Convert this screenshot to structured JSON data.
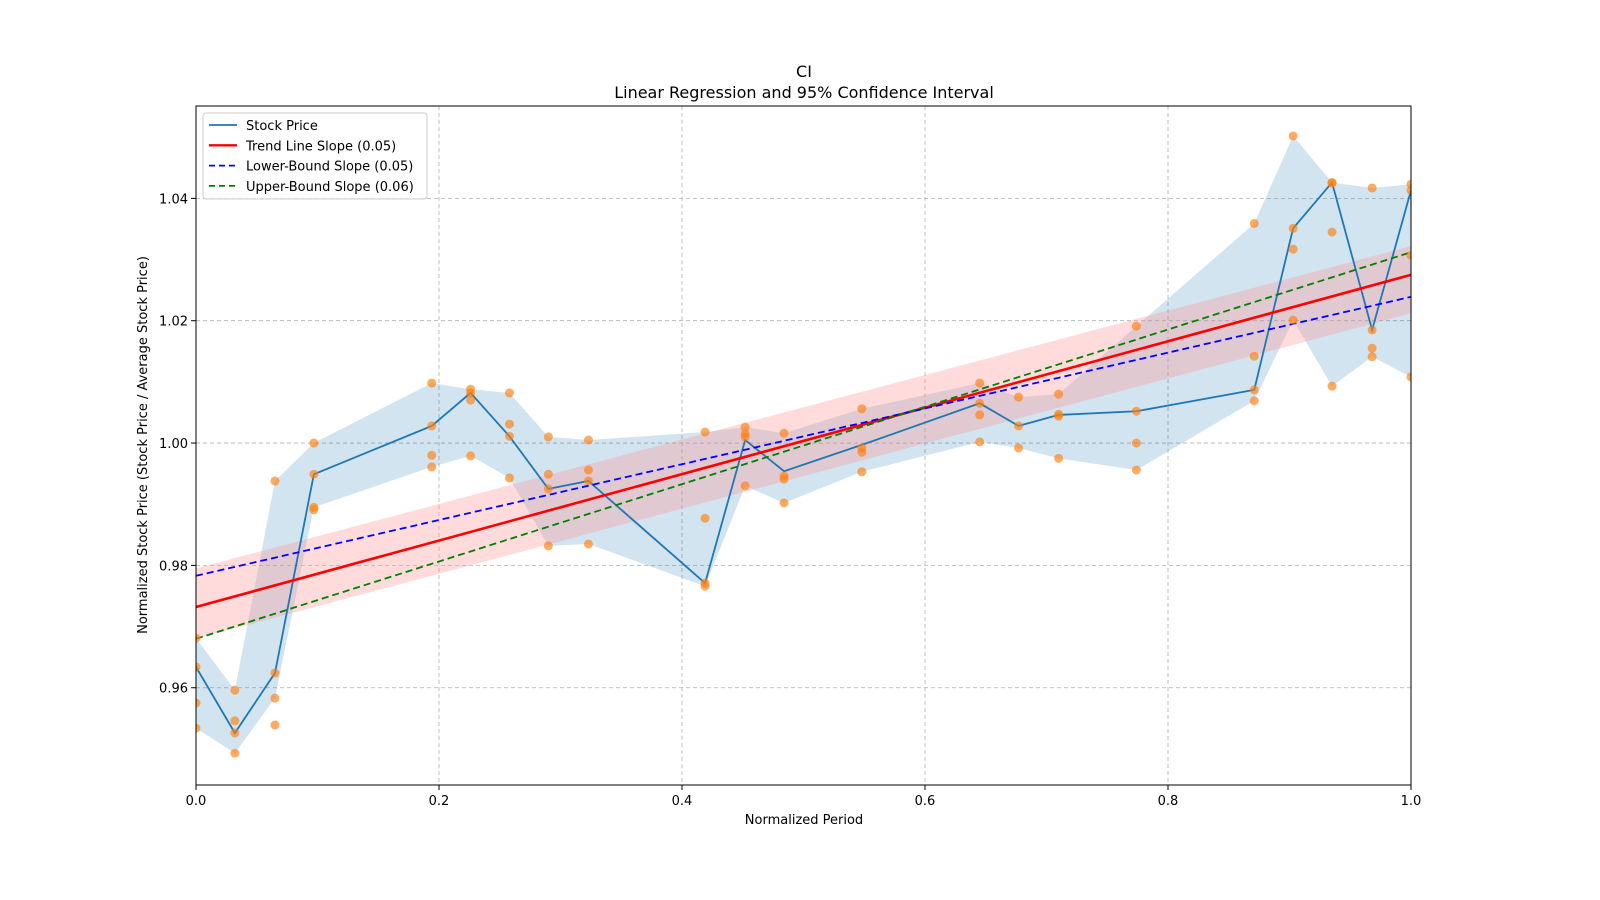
{
  "chart_data": {
    "type": "line",
    "title": "CI",
    "subtitle": "Linear Regression and 95% Confidence Interval",
    "xlabel": "Normalized Period",
    "ylabel": "Normalized Stock Price (Stock Price / Average Stock Price)",
    "xlim": [
      0.0,
      1.0
    ],
    "ylim": [
      0.9441,
      1.0551
    ],
    "grid": true,
    "legend_position": "top-left",
    "x_ticks": [
      "0.0",
      "0.2",
      "0.4",
      "0.6",
      "0.8",
      "1.0"
    ],
    "x_tick_values": [
      0.0,
      0.2,
      0.4,
      0.6,
      0.8,
      1.0
    ],
    "y_ticks": [
      "0.96",
      "0.98",
      "1.00",
      "1.02",
      "1.04"
    ],
    "y_tick_values": [
      0.96,
      0.98,
      1.0,
      1.02,
      1.04
    ],
    "colors": {
      "stock": "#1f77b4",
      "stock_band": "#1f77b4",
      "scatter": "#ff7f0e",
      "trend": "#ff0000",
      "trend_band": "#ff9999",
      "lower": "#0000ff",
      "upper": "#008000"
    },
    "legend": [
      {
        "label": "Stock Price",
        "style": "solid",
        "color": "#1f77b4"
      },
      {
        "label": "Trend Line Slope (0.05)",
        "style": "solid",
        "color": "#ff0000"
      },
      {
        "label": "Lower-Bound Slope (0.05)",
        "style": "dashed",
        "color": "#0000ff"
      },
      {
        "label": "Upper-Bound Slope (0.06)",
        "style": "dashed",
        "color": "#008000"
      }
    ],
    "groups": [
      {
        "x": 0.0,
        "points": [
          0.9634,
          0.9575,
          0.9534,
          0.9681
        ],
        "mean": 0.9634
      },
      {
        "x": 0.032,
        "points": [
          0.9596,
          0.9546,
          0.9526,
          0.9493
        ],
        "mean": 0.9526
      },
      {
        "x": 0.065,
        "points": [
          0.9938,
          0.9624,
          0.9583,
          0.9539
        ],
        "mean": 0.9624
      },
      {
        "x": 0.097,
        "points": [
          1.0,
          0.9949,
          0.9895,
          0.9891
        ],
        "mean": 0.9949
      },
      {
        "x": 0.194,
        "points": [
          1.0098,
          1.0028,
          0.998,
          0.9961
        ],
        "mean": 1.0028
      },
      {
        "x": 0.226,
        "points": [
          1.0088,
          1.0082,
          1.007,
          0.9979
        ],
        "mean": 1.0082
      },
      {
        "x": 0.258,
        "points": [
          1.0082,
          1.0031,
          1.0011,
          0.9943
        ],
        "mean": 1.0011
      },
      {
        "x": 0.29,
        "points": [
          1.001,
          0.9949,
          0.9925,
          0.9832
        ],
        "mean": 0.9925
      },
      {
        "x": 0.323,
        "points": [
          1.0005,
          0.9956,
          0.9938,
          0.9835
        ],
        "mean": 0.9938
      },
      {
        "x": 0.419,
        "points": [
          1.0018,
          0.9877,
          0.9771,
          0.9766
        ],
        "mean": 0.9771
      },
      {
        "x": 0.452,
        "points": [
          1.0026,
          1.0015,
          1.001,
          0.993
        ],
        "mean": 1.0005
      },
      {
        "x": 0.484,
        "points": [
          1.0016,
          0.9946,
          0.9941,
          0.9902
        ],
        "mean": 0.9954
      },
      {
        "x": 0.548,
        "points": [
          1.0056,
          0.9992,
          0.9985,
          0.9953
        ],
        "mean": 0.9997
      },
      {
        "x": 0.645,
        "points": [
          1.0098,
          1.0065,
          1.0046,
          1.0002
        ],
        "mean": 1.0065
      },
      {
        "x": 0.677,
        "points": [
          1.0075,
          1.0028,
          0.9992
        ],
        "mean": 1.0028
      },
      {
        "x": 0.71,
        "points": [
          1.008,
          1.0047,
          1.0044,
          0.9975
        ],
        "mean": 1.0046
      },
      {
        "x": 0.774,
        "points": [
          1.0191,
          1.0052,
          1.0,
          0.9956
        ],
        "mean": 1.0052
      },
      {
        "x": 0.871,
        "points": [
          1.0359,
          1.0142,
          1.0087,
          1.0069
        ],
        "mean": 1.0087
      },
      {
        "x": 0.903,
        "points": [
          1.0502,
          1.0351,
          1.0317,
          1.0201
        ],
        "mean": 1.0351
      },
      {
        "x": 0.935,
        "points": [
          1.0426,
          1.0425,
          1.0345,
          1.0093
        ],
        "mean": 1.0426
      },
      {
        "x": 0.968,
        "points": [
          1.0417,
          1.0185,
          1.0155,
          1.0141
        ],
        "mean": 1.0185
      },
      {
        "x": 1.0,
        "points": [
          1.0423,
          1.0413,
          1.0307,
          1.0108
        ],
        "mean": 1.0413
      }
    ],
    "stock_band": {
      "upper": [
        0.9681,
        0.9596,
        0.9938,
        1.0,
        1.0098,
        1.0088,
        1.0082,
        1.001,
        1.0005,
        1.0018,
        1.0026,
        1.0016,
        1.0056,
        1.0098,
        1.0075,
        1.008,
        1.0191,
        1.0359,
        1.0502,
        1.0426,
        1.0417,
        1.0423
      ],
      "lower": [
        0.9534,
        0.9493,
        0.9583,
        0.9895,
        0.9961,
        0.9979,
        0.9943,
        0.9832,
        0.9835,
        0.9766,
        0.993,
        0.9902,
        0.9953,
        1.0002,
        0.9992,
        0.9975,
        0.9956,
        1.0069,
        1.0201,
        1.0093,
        1.0141,
        1.0108
      ]
    },
    "trend_line": {
      "start": 0.9732,
      "end": 1.0275,
      "slope": 0.05
    },
    "trend_band": {
      "lower_start": 0.968,
      "lower_end": 1.0212,
      "upper_start": 0.9795,
      "upper_end": 1.0322
    },
    "lower_bound_line": {
      "start": 0.9783,
      "end": 1.0239,
      "slope": 0.05
    },
    "upper_bound_line": {
      "start": 0.968,
      "end": 1.0312,
      "slope": 0.06
    }
  }
}
